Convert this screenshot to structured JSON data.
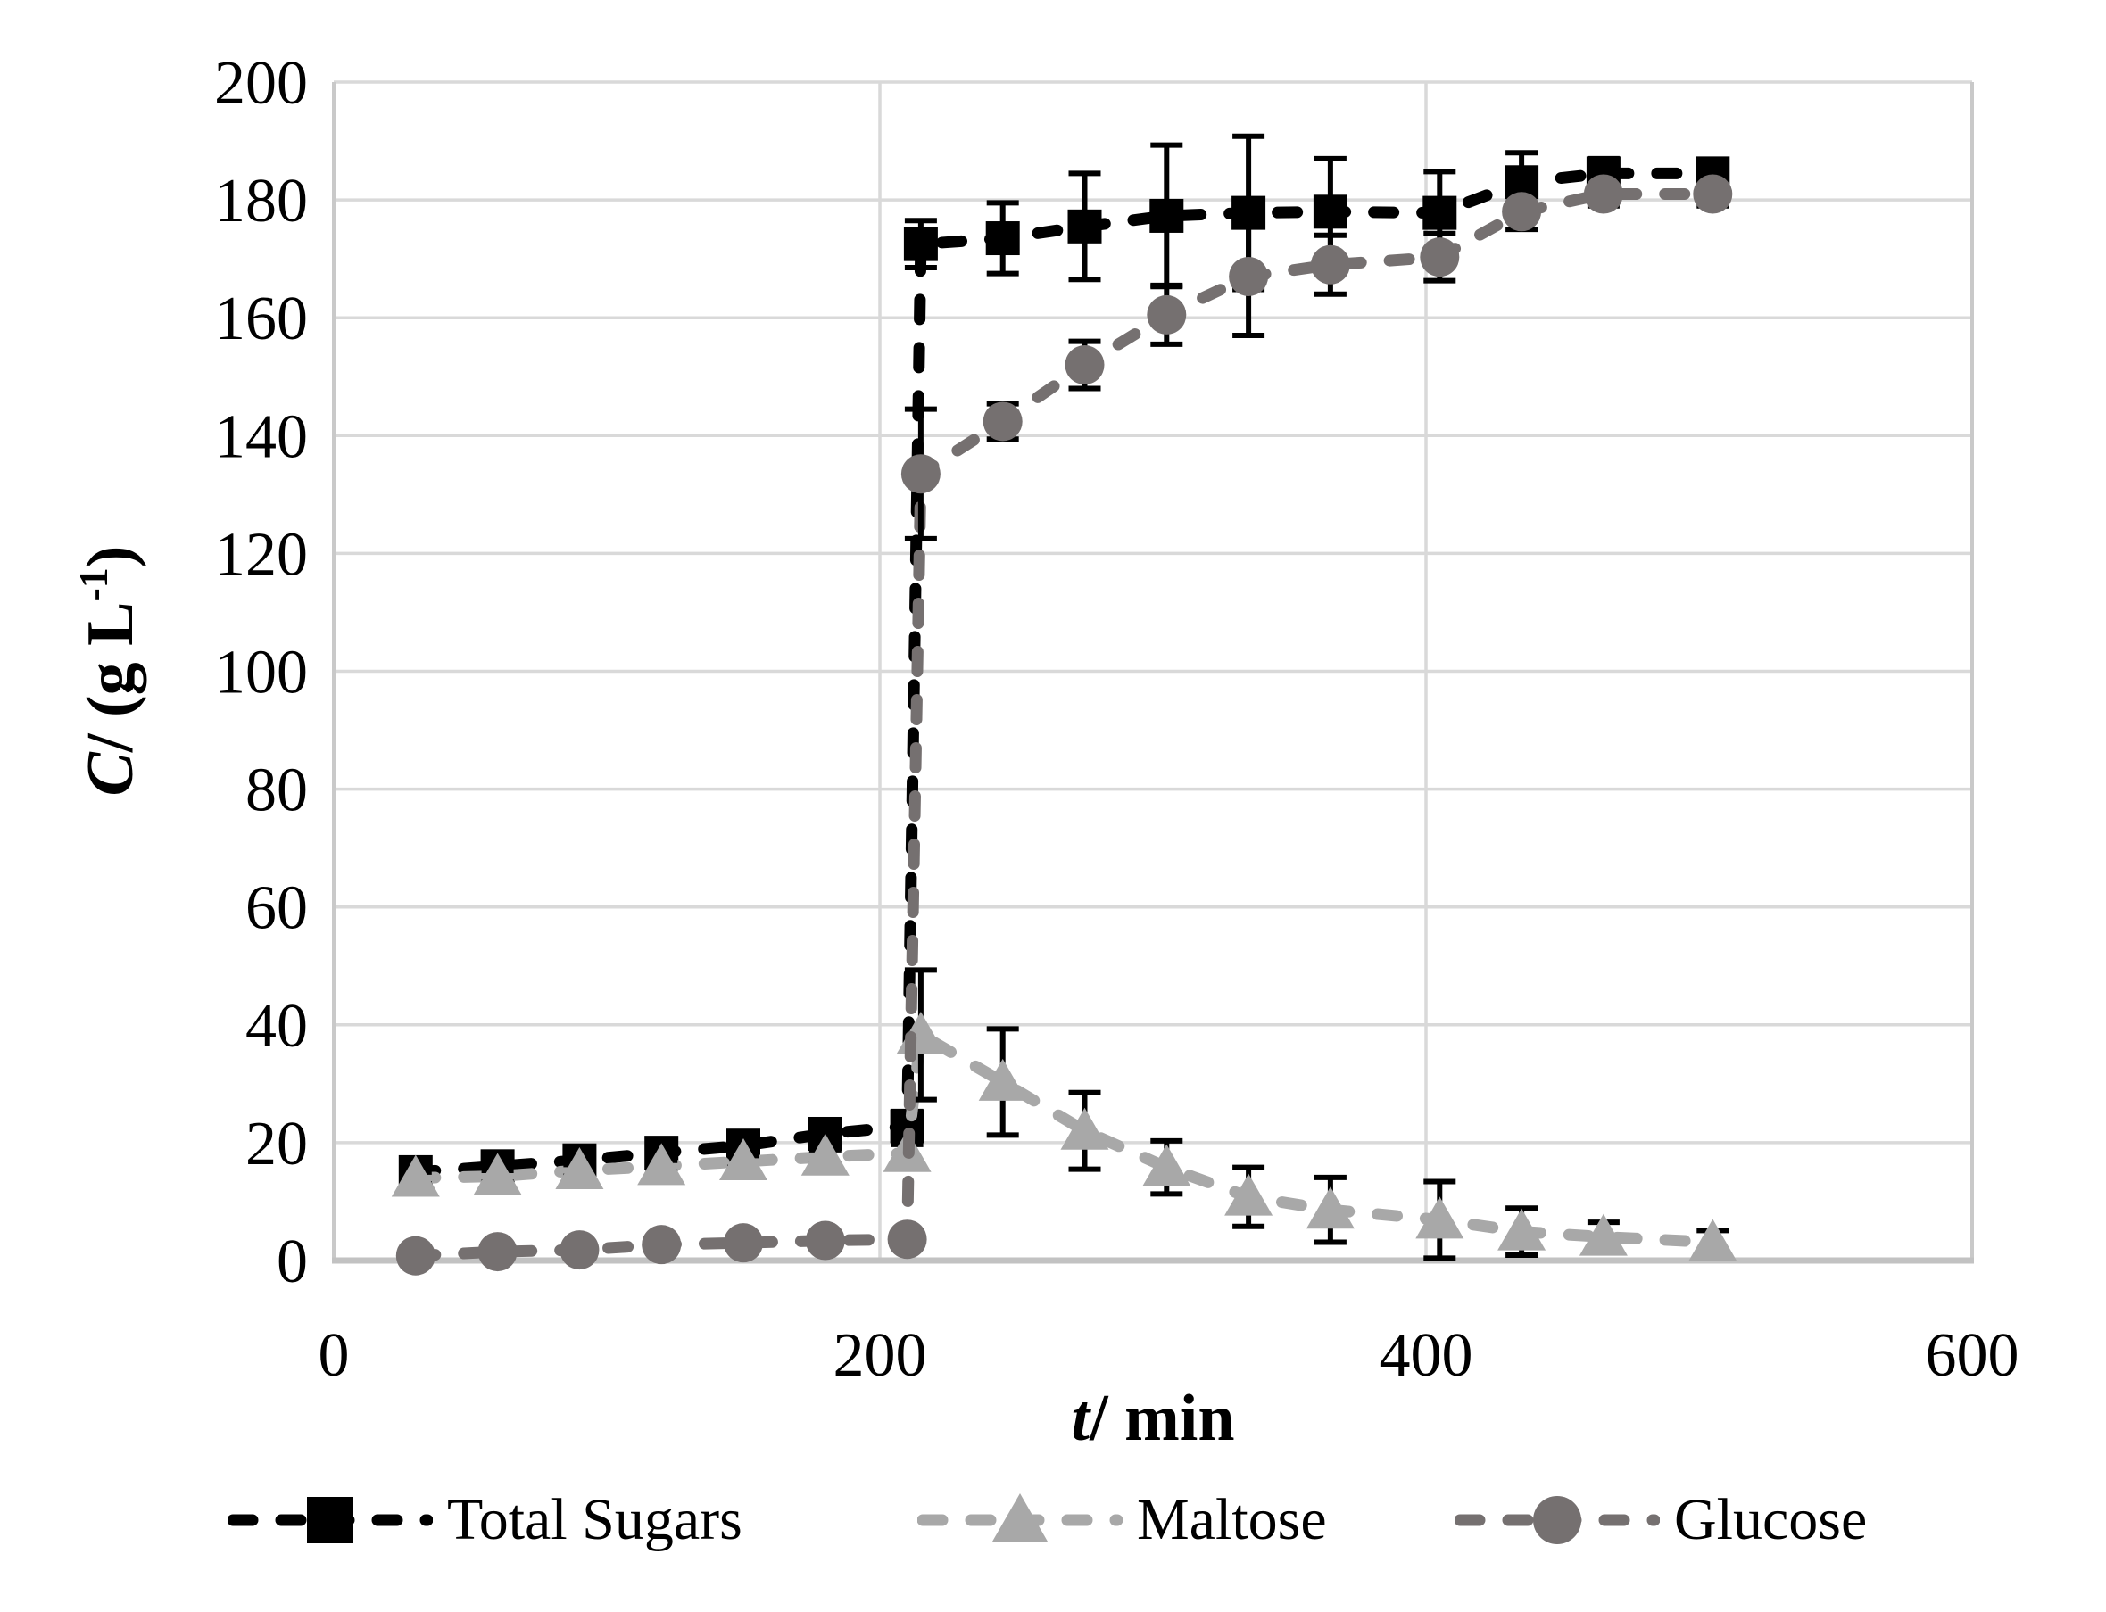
{
  "chart_data": {
    "type": "line",
    "title": "",
    "xlabel": "t/ min",
    "ylabel": "C/ (g L-1)",
    "xlim": [
      0,
      600
    ],
    "ylim": [
      0,
      200
    ],
    "x_ticks": [
      0,
      200,
      400,
      600
    ],
    "y_ticks": [
      0,
      20,
      40,
      60,
      80,
      100,
      120,
      140,
      160,
      180,
      200
    ],
    "grid": true,
    "legend_position": "bottom",
    "x": [
      30,
      60,
      90,
      120,
      150,
      180,
      210,
      215,
      245,
      275,
      305,
      335,
      365,
      405,
      435,
      465,
      505
    ],
    "series": [
      {
        "name": "Total Sugars",
        "marker": "square",
        "color": "#000000",
        "values": [
          15,
          16,
          17,
          18.3,
          19.5,
          21.5,
          22.8,
          172.5,
          173.5,
          175.5,
          177.3,
          177.8,
          178,
          177.8,
          183,
          184.5,
          184.5
        ],
        "errors": [
          1.5,
          1.5,
          1.5,
          1.5,
          1.5,
          2,
          2.5,
          4,
          6,
          9,
          12,
          13,
          9,
          7,
          5,
          2.5,
          2
        ]
      },
      {
        "name": "Maltose",
        "marker": "triangle",
        "color": "#a8a8a8",
        "values": [
          14,
          14.3,
          15.3,
          16,
          16.8,
          17.6,
          18.2,
          38.3,
          30.3,
          22,
          15.8,
          10.8,
          8.6,
          6.9,
          4.9,
          4,
          3.1
        ],
        "errors": [
          1,
          1,
          1,
          1,
          1,
          1.2,
          1.5,
          11,
          9,
          6.5,
          4.5,
          5,
          5.5,
          6.5,
          4,
          2.5,
          2
        ]
      },
      {
        "name": "Glucose",
        "marker": "circle",
        "color": "#757070",
        "values": [
          0.8,
          1.5,
          1.8,
          2.7,
          3,
          3.4,
          3.6,
          133.5,
          142.4,
          152,
          160.5,
          167,
          169,
          170.3,
          178,
          181,
          181
        ],
        "errors": [
          0.5,
          0.5,
          0.5,
          0.5,
          0.5,
          0.8,
          1,
          11,
          3,
          4,
          5,
          10,
          5,
          4,
          3,
          2,
          2
        ]
      }
    ],
    "error_bar_color": "#000000",
    "colors": {
      "gridline": "#d9d9d9",
      "plot_border": "#c9c9c9",
      "axis_line": "#c2c2c2",
      "text": "#000000"
    }
  },
  "axis_titles": {
    "x_var": "t",
    "x_rest": "/ min",
    "y_var": "C",
    "y_pre": "/ (g L",
    "y_sup": "-1",
    "y_post": ")"
  },
  "legend": {
    "items": [
      {
        "label": "Total Sugars"
      },
      {
        "label": "Maltose"
      },
      {
        "label": "Glucose"
      }
    ]
  }
}
